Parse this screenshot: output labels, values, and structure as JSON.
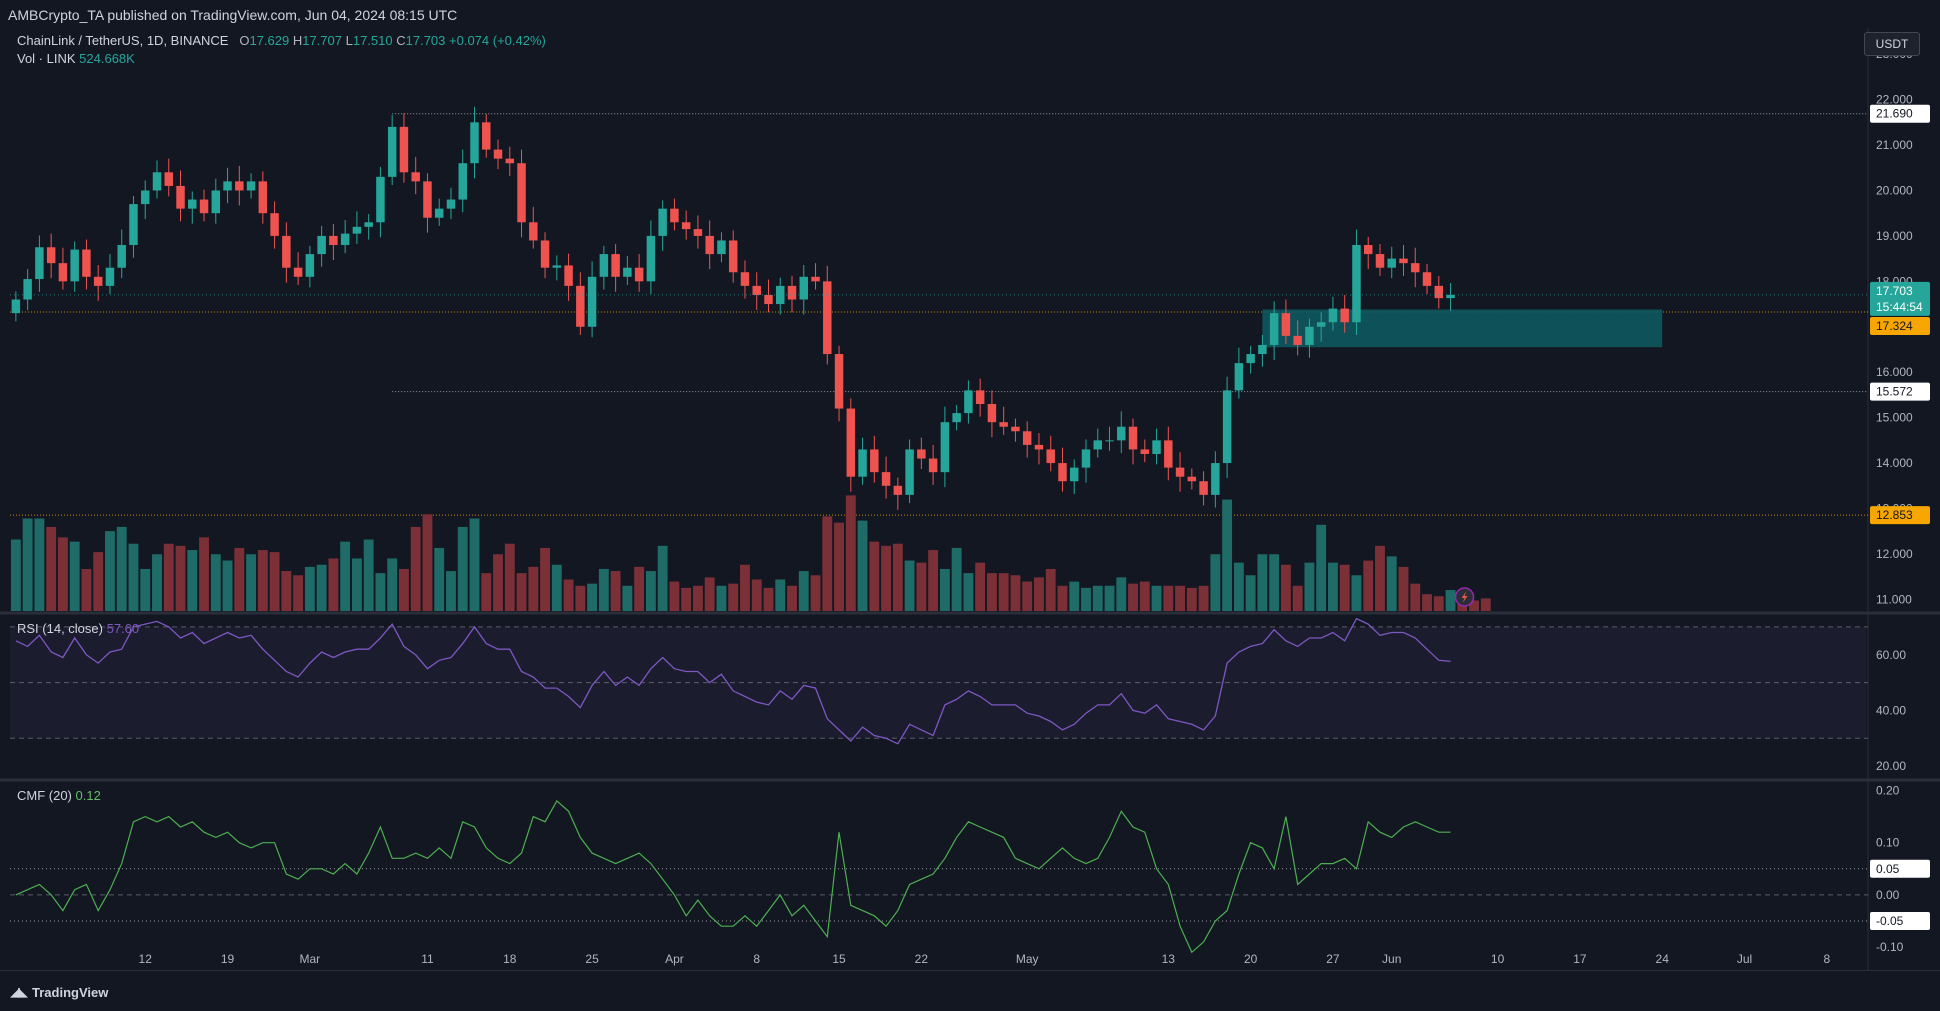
{
  "header": {
    "publisher_text": "AMBCrypto_TA published on TradingView.com, Jun 04, 2024 08:15 UTC",
    "currency_button": "USDT"
  },
  "legend": {
    "symbol": "ChainLink / TetherUS, 1D, BINANCE",
    "open_label": "O",
    "open": "17.629",
    "high_label": "H",
    "high": "17.707",
    "low_label": "L",
    "low": "17.510",
    "close_label": "C",
    "close": "17.703",
    "change": "+0.074 (+0.42%)",
    "volume_label": "Vol · LINK",
    "volume": "524.668K",
    "rsi_label": "RSI (14, close)",
    "rsi_value": "57.60",
    "cmf_label": "CMF (20)",
    "cmf_value": "0.12"
  },
  "footer": {
    "brand": "TradingView"
  },
  "colors": {
    "background": "#131722",
    "up": "#26a69a",
    "down": "#ef5350",
    "up_volume": "#1e6b67",
    "down_volume": "#7a3036",
    "rsi": "#7e57c2",
    "cmf": "#4caf50",
    "zone": "#0e5c63",
    "price_label": "#26a69a",
    "level_orange": "#f7a600"
  },
  "chart_data": [
    {
      "type": "candlestick",
      "ylim": [
        10.7,
        23.4
      ],
      "y_ticks": [
        "23.000",
        "22.000",
        "21.000",
        "20.000",
        "19.000",
        "18.000",
        "16.000",
        "15.000",
        "14.000",
        "13.000",
        "12.000",
        "11.000"
      ],
      "x_ticks": [
        {
          "index": 11,
          "label": "12"
        },
        {
          "index": 18,
          "label": "19"
        },
        {
          "index": 25,
          "label": "Mar"
        },
        {
          "index": 35,
          "label": "11"
        },
        {
          "index": 42,
          "label": "18"
        },
        {
          "index": 49,
          "label": "25"
        },
        {
          "index": 56,
          "label": "Apr"
        },
        {
          "index": 63,
          "label": "8"
        },
        {
          "index": 70,
          "label": "15"
        },
        {
          "index": 77,
          "label": "22"
        },
        {
          "index": 86,
          "label": "May"
        },
        {
          "index": 98,
          "label": "13"
        },
        {
          "index": 105,
          "label": "20"
        },
        {
          "index": 112,
          "label": "27"
        },
        {
          "index": 117,
          "label": "Jun"
        },
        {
          "index": 126,
          "label": "10"
        },
        {
          "index": 133,
          "label": "17"
        },
        {
          "index": 140,
          "label": "24"
        },
        {
          "index": 147,
          "label": "Jul"
        },
        {
          "index": 154,
          "label": "8"
        }
      ],
      "last_index": 122,
      "total_slots": 158,
      "levels": [
        {
          "value": 21.69,
          "label": "21.690",
          "style": "dotted-white"
        },
        {
          "value": 15.572,
          "label": "15.572",
          "style": "dotted-white"
        },
        {
          "value": 17.324,
          "label": "17.324",
          "style": "dotted-orange"
        },
        {
          "value": 12.853,
          "label": "12.853",
          "style": "dotted-orange"
        }
      ],
      "current_price_label": "17.703",
      "countdown_label": "15:44:54",
      "zone": {
        "from_index": 106,
        "to_index": 140,
        "low": 16.55,
        "high": 17.38
      },
      "closes": [
        17.6,
        18.05,
        18.75,
        18.4,
        18.0,
        18.7,
        18.1,
        17.9,
        18.3,
        18.8,
        19.7,
        20.0,
        20.4,
        20.1,
        19.6,
        19.8,
        19.5,
        20.0,
        20.2,
        20.0,
        20.2,
        19.5,
        19.0,
        18.3,
        18.1,
        18.6,
        19.0,
        18.8,
        19.05,
        19.2,
        19.3,
        20.3,
        21.4,
        20.4,
        20.2,
        19.4,
        19.6,
        19.8,
        20.6,
        21.5,
        20.9,
        20.7,
        20.6,
        19.3,
        18.9,
        18.3,
        18.35,
        17.9,
        17.0,
        18.1,
        18.6,
        18.1,
        18.3,
        18.0,
        19.0,
        19.6,
        19.3,
        19.15,
        19.0,
        18.6,
        18.9,
        18.2,
        17.9,
        17.7,
        17.5,
        17.9,
        17.6,
        18.1,
        18.0,
        16.4,
        15.2,
        13.7,
        14.3,
        13.8,
        13.5,
        13.3,
        14.3,
        14.1,
        13.8,
        14.9,
        15.1,
        15.6,
        15.3,
        14.9,
        14.8,
        14.7,
        14.4,
        14.3,
        14.0,
        13.6,
        13.9,
        14.3,
        14.5,
        14.5,
        14.8,
        14.3,
        14.2,
        14.5,
        13.9,
        13.7,
        13.6,
        13.3,
        14.0,
        15.6,
        16.2,
        16.4,
        16.6,
        17.3,
        16.8,
        16.6,
        17.0,
        17.1,
        17.4,
        17.1,
        18.8,
        18.6,
        18.3,
        18.5,
        18.4,
        18.2,
        17.9,
        17.63,
        17.703
      ],
      "volumes": [
        34,
        44,
        44,
        40,
        35,
        33,
        20,
        28,
        38,
        40,
        32,
        20,
        27,
        32,
        31,
        29,
        35,
        27,
        24,
        30,
        27,
        29,
        28,
        19,
        17,
        21,
        22,
        25,
        33,
        25,
        34,
        18,
        25,
        20,
        40,
        46,
        30,
        19,
        40,
        44,
        18,
        27,
        32,
        18,
        21,
        30,
        22,
        15,
        12,
        13,
        20,
        19,
        12,
        21,
        19,
        31,
        14,
        11,
        12,
        16,
        12,
        13,
        22,
        15,
        11,
        15,
        12,
        19,
        17,
        45,
        42,
        55,
        43,
        33,
        31,
        32,
        24,
        23,
        29,
        20,
        30,
        18,
        23,
        18,
        18,
        17,
        14,
        16,
        20,
        12,
        14,
        11,
        12,
        12,
        16,
        13,
        14,
        12,
        12,
        12,
        11,
        12,
        27,
        53,
        23,
        17,
        27,
        27,
        22,
        12,
        23,
        41,
        23,
        22,
        17,
        24,
        31,
        26,
        21,
        13,
        8,
        7,
        10,
        8,
        5,
        6
      ],
      "volume_ylim": [
        0,
        100
      ]
    },
    {
      "type": "line",
      "name": "RSI (14, close)",
      "ylim": [
        15,
        75
      ],
      "y_ticks": [
        "60.00",
        "40.00",
        "20.00"
      ],
      "bands": [
        70,
        50,
        30
      ],
      "values": [
        65,
        63,
        67,
        61,
        59,
        66,
        60,
        57,
        61,
        62,
        70,
        71,
        72,
        70,
        66,
        68,
        64,
        66,
        68,
        66,
        67,
        62,
        58,
        54,
        52,
        57,
        61,
        59,
        61,
        62,
        62,
        66,
        71,
        63,
        60,
        55,
        58,
        59,
        64,
        70,
        64,
        62,
        62,
        54,
        52,
        48,
        48,
        45,
        41,
        49,
        54,
        49,
        52,
        49,
        55,
        59,
        55,
        54,
        54,
        50,
        53,
        47,
        45,
        43,
        42,
        47,
        44,
        49,
        48,
        37,
        33,
        29,
        34,
        31,
        30,
        28,
        35,
        33,
        31,
        42,
        44,
        47,
        45,
        42,
        42,
        42,
        39,
        38,
        36,
        33,
        35,
        39,
        42,
        42,
        46,
        40,
        39,
        42,
        37,
        36,
        35,
        33,
        38,
        57,
        61,
        63,
        64,
        69,
        65,
        63,
        66,
        66,
        68,
        65,
        73,
        71,
        67,
        68,
        68,
        66,
        62,
        58,
        57.6
      ]
    },
    {
      "type": "line",
      "name": "CMF (20)",
      "ylim": [
        -0.14,
        0.22
      ],
      "y_ticks": [
        "0.20",
        "0.10",
        "0.00",
        "-0.10"
      ],
      "levels": [
        0.05,
        -0.05
      ],
      "level_labels": [
        "0.05",
        "-0.05"
      ],
      "values": [
        0.0,
        0.01,
        0.02,
        0.0,
        -0.03,
        0.01,
        0.02,
        -0.03,
        0.01,
        0.06,
        0.14,
        0.15,
        0.14,
        0.15,
        0.13,
        0.14,
        0.12,
        0.11,
        0.12,
        0.1,
        0.09,
        0.1,
        0.1,
        0.04,
        0.03,
        0.05,
        0.05,
        0.04,
        0.06,
        0.04,
        0.08,
        0.13,
        0.07,
        0.07,
        0.08,
        0.07,
        0.09,
        0.07,
        0.14,
        0.13,
        0.09,
        0.07,
        0.06,
        0.08,
        0.15,
        0.14,
        0.18,
        0.16,
        0.11,
        0.08,
        0.07,
        0.06,
        0.07,
        0.08,
        0.06,
        0.03,
        0.0,
        -0.04,
        -0.01,
        -0.04,
        -0.06,
        -0.06,
        -0.04,
        -0.06,
        -0.03,
        0.0,
        -0.04,
        -0.02,
        -0.05,
        -0.08,
        0.12,
        -0.02,
        -0.03,
        -0.04,
        -0.06,
        -0.03,
        0.02,
        0.03,
        0.04,
        0.07,
        0.11,
        0.14,
        0.13,
        0.12,
        0.11,
        0.07,
        0.06,
        0.05,
        0.07,
        0.09,
        0.07,
        0.06,
        0.07,
        0.11,
        0.16,
        0.13,
        0.12,
        0.05,
        0.02,
        -0.06,
        -0.11,
        -0.09,
        -0.05,
        -0.03,
        0.04,
        0.1,
        0.09,
        0.05,
        0.15,
        0.02,
        0.04,
        0.06,
        0.06,
        0.07,
        0.05,
        0.14,
        0.12,
        0.11,
        0.13,
        0.14,
        0.13,
        0.12,
        0.12
      ]
    }
  ]
}
